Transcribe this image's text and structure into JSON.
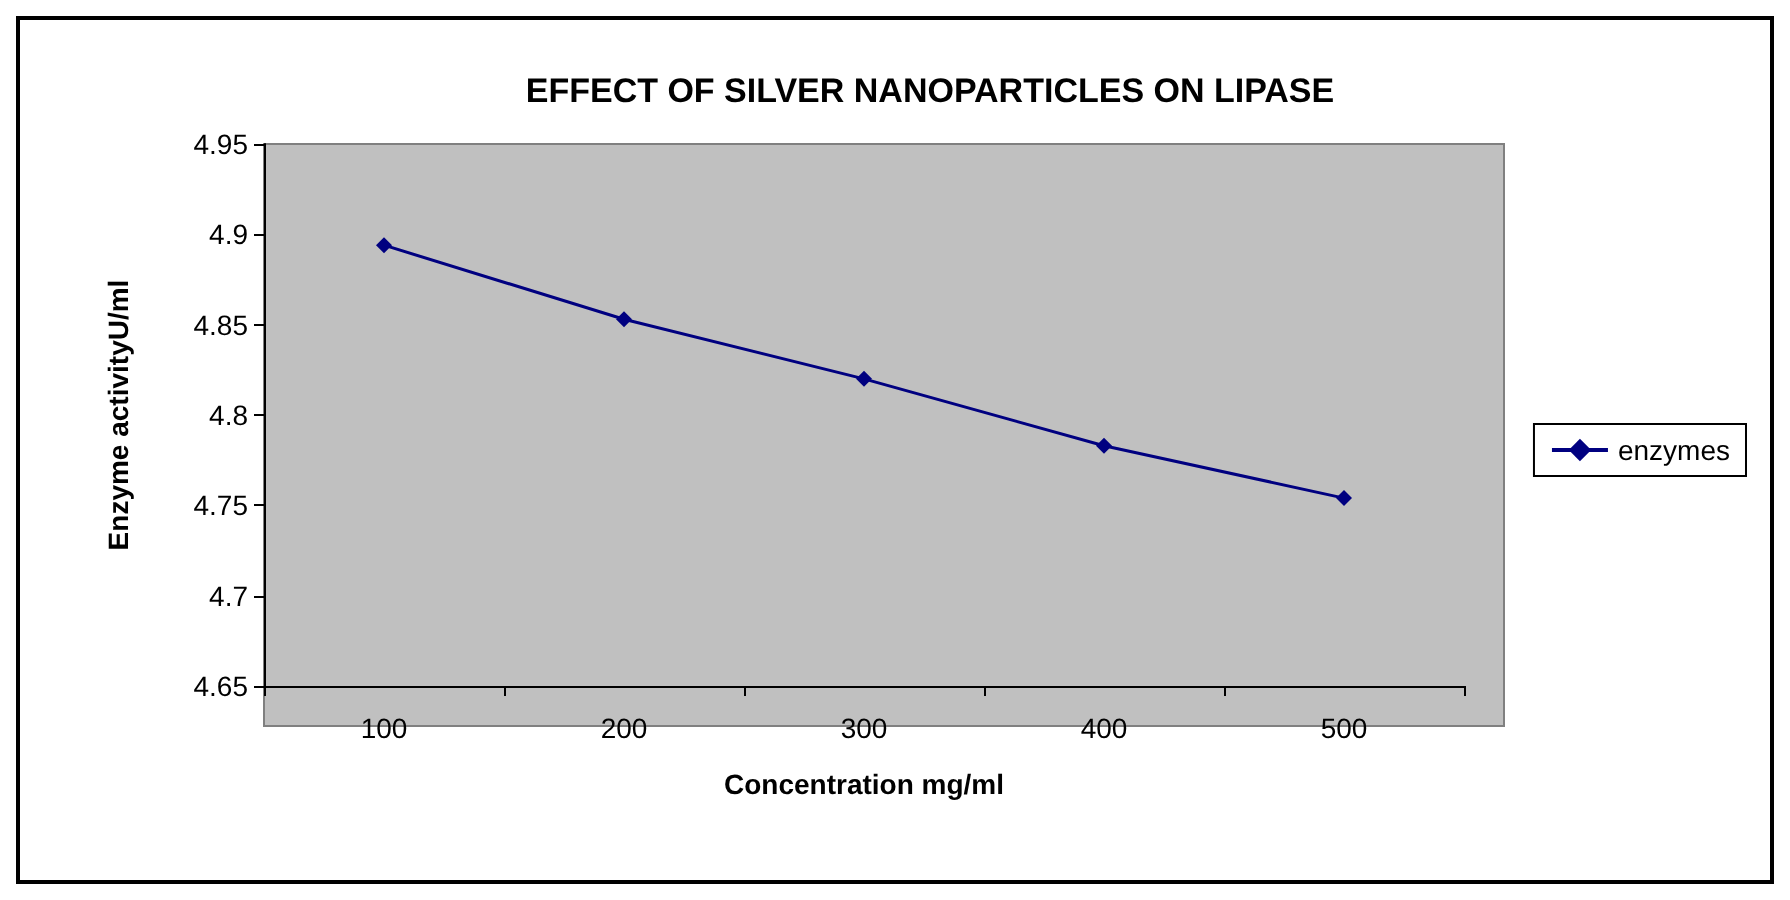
{
  "chart_data": {
    "type": "line",
    "title": "EFFECT OF SILVER NANOPARTICLES ON LIPASE",
    "xlabel": "Concentration mg/ml",
    "ylabel": "Enzyme activityU/ml",
    "categories": [
      "100",
      "200",
      "300",
      "400",
      "500"
    ],
    "series": [
      {
        "name": "enzymes",
        "color": "#000080",
        "values": [
          4.894,
          4.853,
          4.82,
          4.783,
          4.754
        ]
      }
    ],
    "ylim": [
      4.65,
      4.95
    ],
    "yticks": [
      4.65,
      4.7,
      4.75,
      4.8,
      4.85,
      4.9,
      4.95
    ],
    "grid": false,
    "legend": "right",
    "marker": "diamond",
    "line_style": "solid"
  }
}
